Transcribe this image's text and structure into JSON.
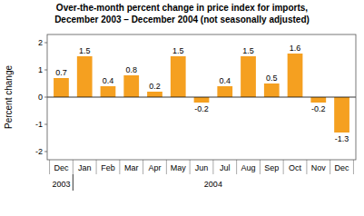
{
  "chart_data": {
    "type": "bar",
    "title": "Over-the-month percent change in price index for imports,",
    "subtitle": "December 2003 – December 2004 (not seasonally adjusted)",
    "y_label": "Percent change",
    "categories": [
      "Dec",
      "Jan",
      "Feb",
      "Mar",
      "Apr",
      "May",
      "Jun",
      "Jul",
      "Aug",
      "Sep",
      "Oct",
      "Nov",
      "Dec"
    ],
    "values": [
      0.7,
      1.5,
      0.4,
      0.8,
      0.2,
      1.5,
      -0.2,
      0.4,
      1.5,
      0.5,
      1.6,
      -0.2,
      -1.3
    ],
    "color": "#F5A020",
    "ylim": [
      -2.3,
      2.3
    ],
    "yticks": [
      -2,
      -1,
      0,
      1,
      2
    ],
    "grid": false,
    "data_labels": true,
    "annotations": [
      {
        "text": "2003",
        "x": 0
      },
      {
        "text": "2004",
        "x": 6.5
      }
    ]
  }
}
